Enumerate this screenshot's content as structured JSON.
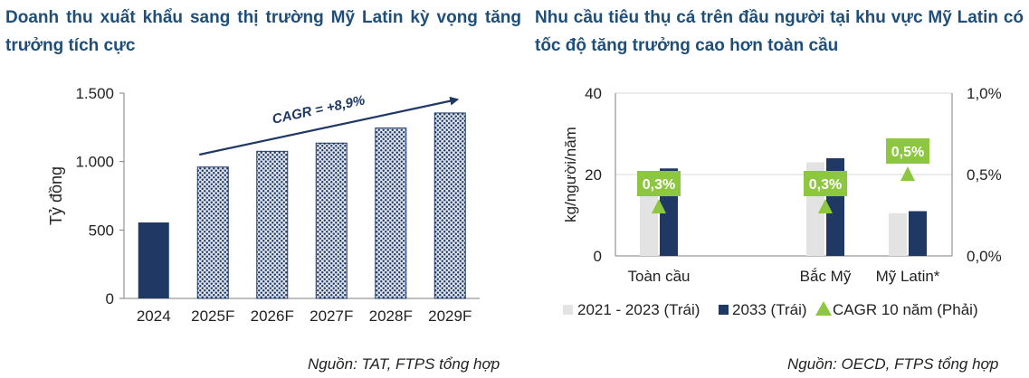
{
  "left_panel": {
    "title": "Doanh thu xuất khẩu sang thị trường Mỹ Latin kỳ vọng tăng trưởng tích cực",
    "source": "Nguồn: TAT, FTPS tổng hợp"
  },
  "right_panel": {
    "title": "Nhu cầu tiêu thụ cá trên đầu người tại khu vực Mỹ Latin có tốc độ tăng trưởng cao hơn toàn cầu",
    "source": "Nguồn: OECD, FTPS tổng hợp"
  },
  "colors": {
    "title": "#1f4e79",
    "navy": "#1f3864",
    "light_gray": "#e3e3e3",
    "green": "#8dc63f",
    "hatch_bg": "#dfe4ef"
  },
  "chart_data": [
    {
      "type": "bar",
      "title": "",
      "xlabel": "",
      "ylabel": "Tỷ đồng",
      "categories": [
        "2024",
        "2025F",
        "2026F",
        "2027F",
        "2028F",
        "2029F"
      ],
      "values": [
        555,
        960,
        1075,
        1135,
        1245,
        1355
      ],
      "ylim": [
        0,
        1500
      ],
      "yticks": [
        0,
        500,
        1000,
        1500
      ],
      "ytick_labels": [
        "0",
        "500",
        "1.000",
        "1.500"
      ],
      "styles": [
        "solid",
        "patterned",
        "patterned",
        "patterned",
        "patterned",
        "patterned"
      ],
      "annotation": "CAGR = +8,9%",
      "grid": false
    },
    {
      "type": "bar",
      "title": "",
      "xlabel": "",
      "ylabel": "kg/người/năm",
      "categories": [
        "Toàn cầu",
        "Bắc Mỹ",
        "Mỹ Latin*"
      ],
      "ylim": [
        0,
        40
      ],
      "yticks": [
        0,
        20,
        40
      ],
      "y2lim": [
        0,
        1.0
      ],
      "y2ticks": [
        "0,0%",
        "0,5%",
        "1,0%"
      ],
      "series": [
        {
          "name": "2021 - 2023 (Trái)",
          "values": [
            20.5,
            23.0,
            10.5
          ]
        },
        {
          "name": "2033 (Trái)",
          "values": [
            21.5,
            24.0,
            11.0
          ]
        },
        {
          "name": "CAGR 10 năm (Phải)",
          "values": [
            0.3,
            0.3,
            0.5
          ],
          "labels": [
            "0,3%",
            "0,3%",
            "0,5%"
          ],
          "marker": "triangle"
        }
      ],
      "legend_position": "bottom",
      "grid": true
    }
  ]
}
